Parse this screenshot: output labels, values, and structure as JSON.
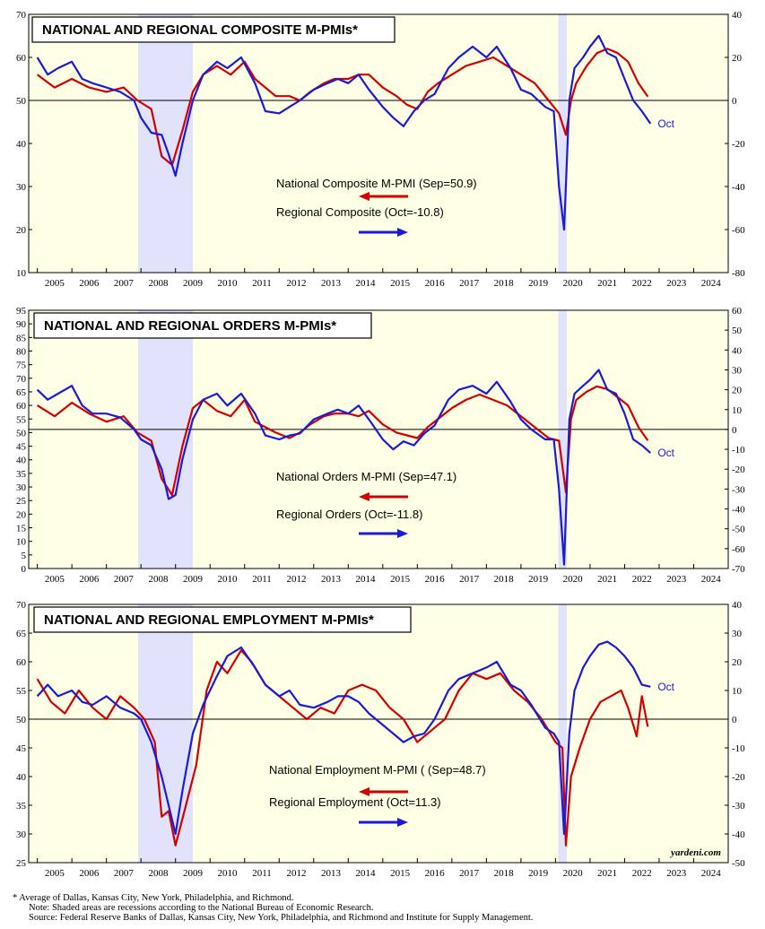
{
  "colors": {
    "national": "#d40000",
    "regional": "#1b1bd6",
    "plot_bg": "#ffffe6",
    "recession": "#e1e2fb"
  },
  "years": [
    "2005",
    "2006",
    "2007",
    "2008",
    "2009",
    "2010",
    "2011",
    "2012",
    "2013",
    "2014",
    "2015",
    "2016",
    "2017",
    "2018",
    "2019",
    "2020",
    "2021",
    "2022",
    "2023",
    "2024"
  ],
  "recessions": [
    [
      2007.92,
      2009.5
    ],
    [
      2020.08,
      2020.33
    ]
  ],
  "chart_data": [
    {
      "type": "line",
      "title": "NATIONAL AND REGIONAL COMPOSITE M-PMIs*",
      "x_range": [
        2004.75,
        2025.0
      ],
      "ylim_left": [
        10,
        70
      ],
      "ylim_right": [
        -80,
        40
      ],
      "left_ticks": [
        10,
        20,
        30,
        40,
        50,
        60,
        70
      ],
      "right_ticks": [
        -80,
        -60,
        -40,
        -20,
        0,
        20,
        40
      ],
      "legend": [
        {
          "label": "National Composite M-PMI (Sep=50.9)",
          "color": "national",
          "direction": "left"
        },
        {
          "label": "Regional Composite (Oct=-10.8)",
          "color": "regional",
          "direction": "right"
        }
      ],
      "end_label": "Oct",
      "series": [
        {
          "name": "National Composite M-PMI",
          "axis": "left",
          "color": "national",
          "x": [
            2005.0,
            2005.5,
            2006.0,
            2006.5,
            2007.0,
            2007.5,
            2007.9,
            2008.3,
            2008.6,
            2008.9,
            2009.2,
            2009.5,
            2009.8,
            2010.2,
            2010.6,
            2011.0,
            2011.3,
            2011.6,
            2011.9,
            2012.3,
            2012.6,
            2012.9,
            2013.3,
            2013.6,
            2014.0,
            2014.3,
            2014.6,
            2015.0,
            2015.4,
            2015.7,
            2016.0,
            2016.3,
            2016.6,
            2017.0,
            2017.4,
            2017.8,
            2018.2,
            2018.6,
            2019.0,
            2019.4,
            2019.8,
            2020.1,
            2020.3,
            2020.45,
            2020.6,
            2020.9,
            2021.2,
            2021.5,
            2021.8,
            2022.1,
            2022.4,
            2022.67
          ],
          "values": [
            56,
            53,
            55,
            53,
            52,
            53,
            50,
            48,
            37,
            35,
            43,
            52,
            56,
            58,
            56,
            59,
            55,
            53,
            51,
            51,
            50,
            52,
            54,
            55,
            55,
            56,
            56,
            53,
            51,
            49,
            48,
            52,
            54,
            56,
            58,
            59,
            60,
            58,
            56,
            54,
            50,
            47,
            42,
            50,
            54,
            58,
            61,
            62,
            61,
            59,
            54,
            50.9
          ]
        },
        {
          "name": "Regional Composite",
          "axis": "right",
          "color": "regional",
          "x": [
            2005.0,
            2005.3,
            2005.6,
            2006.0,
            2006.3,
            2006.6,
            2007.0,
            2007.4,
            2007.8,
            2008.0,
            2008.3,
            2008.6,
            2008.8,
            2009.0,
            2009.2,
            2009.5,
            2009.8,
            2010.2,
            2010.5,
            2010.9,
            2011.3,
            2011.6,
            2012.0,
            2012.3,
            2012.6,
            2013.0,
            2013.4,
            2013.7,
            2014.0,
            2014.3,
            2014.6,
            2015.0,
            2015.3,
            2015.6,
            2015.9,
            2016.2,
            2016.5,
            2016.9,
            2017.2,
            2017.6,
            2018.0,
            2018.3,
            2018.7,
            2019.0,
            2019.3,
            2019.7,
            2019.95,
            2020.1,
            2020.25,
            2020.4,
            2020.55,
            2020.8,
            2021.0,
            2021.25,
            2021.5,
            2021.75,
            2022.0,
            2022.25,
            2022.5,
            2022.75
          ],
          "values": [
            20,
            12,
            15,
            18,
            10,
            8,
            6,
            4,
            0,
            -8,
            -15,
            -16,
            -25,
            -35,
            -20,
            0,
            12,
            18,
            15,
            20,
            8,
            -5,
            -6,
            -3,
            0,
            5,
            8,
            10,
            8,
            12,
            5,
            -3,
            -8,
            -12,
            -5,
            0,
            3,
            15,
            20,
            25,
            20,
            25,
            15,
            5,
            3,
            -3,
            -5,
            -40,
            -60,
            0,
            15,
            20,
            25,
            30,
            22,
            20,
            10,
            0,
            -5,
            -10.8
          ]
        }
      ]
    },
    {
      "type": "line",
      "title": "NATIONAL AND REGIONAL ORDERS M-PMIs*",
      "x_range": [
        2004.75,
        2025.0
      ],
      "ylim_left": [
        0,
        95
      ],
      "ylim_right": [
        -70,
        60
      ],
      "left_ticks": [
        0,
        5,
        10,
        15,
        20,
        25,
        30,
        35,
        40,
        45,
        50,
        55,
        60,
        65,
        70,
        75,
        80,
        85,
        90,
        95
      ],
      "right_ticks": [
        -70,
        -60,
        -50,
        -40,
        -30,
        -20,
        -10,
        0,
        10,
        20,
        30,
        40,
        50,
        60
      ],
      "legend": [
        {
          "label": "National Orders M-PMI (Sep=47.1)",
          "color": "national",
          "direction": "left"
        },
        {
          "label": "Regional Orders (Oct=-11.8)",
          "color": "regional",
          "direction": "right"
        }
      ],
      "end_label": "Oct",
      "series": [
        {
          "name": "National Orders M-PMI",
          "axis": "left",
          "color": "national",
          "x": [
            2005.0,
            2005.5,
            2006.0,
            2006.5,
            2007.0,
            2007.5,
            2007.9,
            2008.3,
            2008.6,
            2008.9,
            2009.2,
            2009.5,
            2009.8,
            2010.2,
            2010.6,
            2011.0,
            2011.3,
            2011.6,
            2011.9,
            2012.3,
            2012.6,
            2012.9,
            2013.3,
            2013.6,
            2014.0,
            2014.3,
            2014.6,
            2015.0,
            2015.4,
            2015.7,
            2016.0,
            2016.3,
            2016.6,
            2017.0,
            2017.4,
            2017.8,
            2018.2,
            2018.6,
            2019.0,
            2019.4,
            2019.8,
            2020.1,
            2020.3,
            2020.45,
            2020.6,
            2020.9,
            2021.2,
            2021.5,
            2021.8,
            2022.1,
            2022.4,
            2022.67
          ],
          "values": [
            60,
            56,
            61,
            57,
            54,
            56,
            50,
            47,
            33,
            27,
            45,
            59,
            62,
            58,
            56,
            62,
            54,
            52,
            50,
            48,
            50,
            53,
            56,
            57,
            57,
            56,
            58,
            53,
            50,
            49,
            48,
            52,
            55,
            59,
            62,
            64,
            62,
            60,
            56,
            52,
            48,
            47,
            28,
            55,
            62,
            65,
            67,
            66,
            63,
            60,
            52,
            47.1
          ]
        },
        {
          "name": "Regional Orders",
          "axis": "right",
          "color": "regional",
          "x": [
            2005.0,
            2005.3,
            2005.6,
            2006.0,
            2006.3,
            2006.6,
            2007.0,
            2007.4,
            2007.8,
            2008.0,
            2008.3,
            2008.6,
            2008.8,
            2009.0,
            2009.2,
            2009.5,
            2009.8,
            2010.2,
            2010.5,
            2010.9,
            2011.3,
            2011.6,
            2012.0,
            2012.3,
            2012.6,
            2013.0,
            2013.4,
            2013.7,
            2014.0,
            2014.3,
            2014.6,
            2015.0,
            2015.3,
            2015.6,
            2015.9,
            2016.2,
            2016.5,
            2016.9,
            2017.2,
            2017.6,
            2018.0,
            2018.3,
            2018.7,
            2019.0,
            2019.3,
            2019.7,
            2019.95,
            2020.1,
            2020.25,
            2020.4,
            2020.55,
            2020.8,
            2021.0,
            2021.25,
            2021.5,
            2021.75,
            2022.0,
            2022.25,
            2022.5,
            2022.75
          ],
          "values": [
            20,
            15,
            18,
            22,
            12,
            8,
            8,
            6,
            0,
            -5,
            -8,
            -20,
            -35,
            -33,
            -15,
            5,
            15,
            18,
            12,
            18,
            8,
            -3,
            -5,
            -3,
            -2,
            5,
            8,
            10,
            8,
            12,
            5,
            -5,
            -10,
            -6,
            -8,
            -2,
            2,
            15,
            20,
            22,
            18,
            24,
            14,
            5,
            0,
            -5,
            -5,
            -30,
            -68,
            5,
            18,
            22,
            25,
            30,
            20,
            18,
            8,
            -5,
            -8,
            -11.8
          ]
        }
      ]
    },
    {
      "type": "line",
      "title": "NATIONAL AND REGIONAL EMPLOYMENT M-PMIs*",
      "x_range": [
        2004.75,
        2025.0
      ],
      "ylim_left": [
        25,
        70
      ],
      "ylim_right": [
        -50,
        40
      ],
      "left_ticks": [
        25,
        30,
        35,
        40,
        45,
        50,
        55,
        60,
        65,
        70
      ],
      "right_ticks": [
        -50,
        -40,
        -30,
        -20,
        -10,
        0,
        10,
        20,
        30,
        40
      ],
      "legend": [
        {
          "label": "National Employment M-PMI ( (Sep=48.7)",
          "color": "national",
          "direction": "left"
        },
        {
          "label": "Regional Employment (Oct=11.3)",
          "color": "regional",
          "direction": "right"
        }
      ],
      "end_label": "Oct",
      "credit": "yardeni.com",
      "series": [
        {
          "name": "National Employment M-PMI",
          "axis": "left",
          "color": "national",
          "x": [
            2005.0,
            2005.4,
            2005.8,
            2006.2,
            2006.6,
            2007.0,
            2007.4,
            2007.8,
            2008.1,
            2008.4,
            2008.6,
            2008.8,
            2009.0,
            2009.3,
            2009.6,
            2009.9,
            2010.2,
            2010.5,
            2010.9,
            2011.2,
            2011.6,
            2012.0,
            2012.4,
            2012.8,
            2013.2,
            2013.6,
            2014.0,
            2014.4,
            2014.8,
            2015.2,
            2015.6,
            2016.0,
            2016.4,
            2016.8,
            2017.2,
            2017.6,
            2018.0,
            2018.4,
            2018.8,
            2019.2,
            2019.6,
            2020.0,
            2020.2,
            2020.3,
            2020.45,
            2020.7,
            2021.0,
            2021.3,
            2021.6,
            2021.9,
            2022.1,
            2022.35,
            2022.5,
            2022.67
          ],
          "values": [
            57,
            53,
            51,
            55,
            52,
            50,
            54,
            52,
            50,
            46,
            33,
            34,
            28,
            35,
            42,
            55,
            60,
            58,
            62,
            60,
            56,
            54,
            52,
            50,
            52,
            51,
            55,
            56,
            55,
            52,
            50,
            46,
            48,
            50,
            55,
            58,
            57,
            58,
            55,
            53,
            50,
            46,
            45,
            28,
            40,
            45,
            50,
            53,
            54,
            55,
            52,
            47,
            54,
            48.7
          ]
        },
        {
          "name": "Regional Employment",
          "axis": "right",
          "color": "regional",
          "x": [
            2005.0,
            2005.3,
            2005.6,
            2006.0,
            2006.3,
            2006.6,
            2007.0,
            2007.4,
            2007.8,
            2008.0,
            2008.3,
            2008.6,
            2008.8,
            2009.0,
            2009.2,
            2009.5,
            2009.8,
            2010.2,
            2010.5,
            2010.9,
            2011.3,
            2011.6,
            2012.0,
            2012.3,
            2012.6,
            2013.0,
            2013.4,
            2013.7,
            2014.0,
            2014.3,
            2014.6,
            2015.0,
            2015.3,
            2015.6,
            2015.9,
            2016.2,
            2016.5,
            2016.9,
            2017.2,
            2017.6,
            2018.0,
            2018.3,
            2018.7,
            2019.0,
            2019.3,
            2019.7,
            2019.95,
            2020.1,
            2020.25,
            2020.4,
            2020.55,
            2020.8,
            2021.0,
            2021.25,
            2021.5,
            2021.75,
            2022.0,
            2022.25,
            2022.5,
            2022.75
          ],
          "values": [
            8,
            12,
            8,
            10,
            6,
            5,
            8,
            4,
            2,
            0,
            -8,
            -20,
            -30,
            -40,
            -25,
            -5,
            5,
            15,
            22,
            25,
            18,
            12,
            8,
            10,
            5,
            4,
            6,
            8,
            8,
            6,
            2,
            -2,
            -5,
            -8,
            -6,
            -5,
            0,
            10,
            14,
            16,
            18,
            20,
            12,
            10,
            5,
            -3,
            -5,
            -8,
            -40,
            -5,
            10,
            18,
            22,
            26,
            27,
            25,
            22,
            18,
            12,
            11.3
          ]
        }
      ]
    }
  ],
  "footnotes": [
    "*   Average of Dallas, Kansas City, New York, Philadelphia, and Richmond.",
    "Note: Shaded areas are recessions according to the National Bureau of Economic Research.",
    "Source: Federal Reserve Banks of Dallas, Kansas City, New York, Philadelphia, and Richmond and Institute for Supply Management."
  ]
}
